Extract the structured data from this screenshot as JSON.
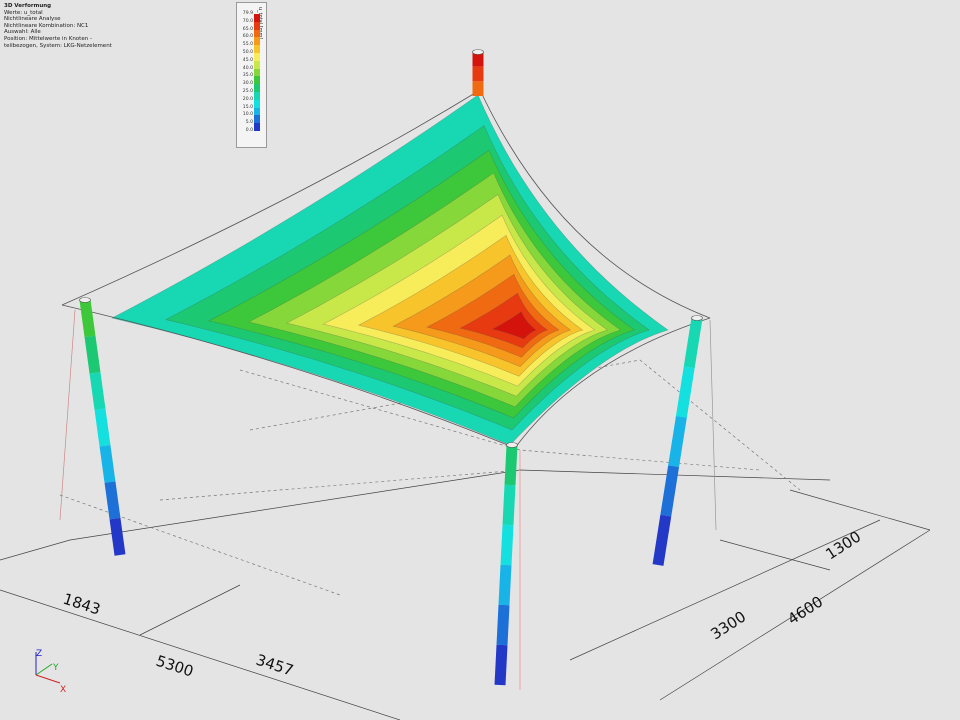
{
  "info": {
    "title": "3D Verformung",
    "lines": [
      "Werte: u_total",
      "Nichtlineare Analyse",
      "Nichtlineare Kombination: NC1",
      "Auswahl: Alle",
      "Position: Mittelwerte in Knoten -",
      "teilbezogen, System: LKG-Netzelement"
    ]
  },
  "legend": {
    "unit": "u_total [mm]",
    "values": [
      "79.9",
      "70.0",
      "65.0",
      "60.0",
      "55.0",
      "50.0",
      "45.0",
      "40.0",
      "35.0",
      "30.0",
      "25.0",
      "20.0",
      "15.0",
      "10.0",
      "5.0",
      "0.0"
    ],
    "colors": [
      "#d4140c",
      "#e83a10",
      "#f06a12",
      "#f59a1a",
      "#f8c42c",
      "#f7ec5a",
      "#c8e84a",
      "#86d83a",
      "#3cc83a",
      "#1cc872",
      "#18d8b4",
      "#14e0e0",
      "#18b4e8",
      "#1c70d8",
      "#2438c8",
      "#3a1ab0"
    ]
  },
  "dimensions": [
    "1843",
    "5300",
    "3457",
    "1300",
    "3300",
    "4600"
  ],
  "axes": {
    "x": "X",
    "y": "Y",
    "z": "Z",
    "x_color": "#cc2222",
    "y_color": "#22aa22",
    "z_color": "#2222cc"
  }
}
